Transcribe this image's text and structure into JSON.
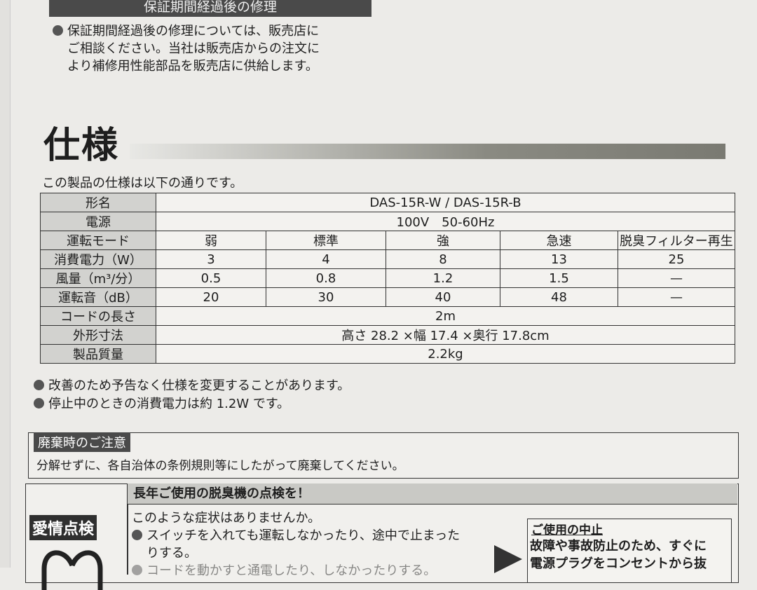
{
  "repair": {
    "heading": "保証期間経過後の修理",
    "lines": [
      "保証期間経過後の修理については、販売店に",
      "ご相談ください。当社は販売店からの注文に",
      "より補修用性能部品を販売店に供給します。"
    ]
  },
  "specs": {
    "title": "仕様",
    "intro": "この製品の仕様は以下の通りです。",
    "rows": {
      "model": {
        "label": "形名",
        "value": "DAS-15R-W / DAS-15R-B"
      },
      "power": {
        "label": "電源",
        "value": "100V　50-60Hz"
      },
      "mode": {
        "label": "運転モード",
        "values": [
          "弱",
          "標準",
          "強",
          "急速",
          "脱臭フィルター再生"
        ]
      },
      "consumption": {
        "label": "消費電力（W）",
        "values": [
          "3",
          "4",
          "8",
          "13",
          "25"
        ]
      },
      "airflow": {
        "label": "風量（m³/分）",
        "values": [
          "0.5",
          "0.8",
          "1.2",
          "1.5",
          "—"
        ]
      },
      "noise": {
        "label": "運転音（dB）",
        "values": [
          "20",
          "30",
          "40",
          "48",
          "—"
        ]
      },
      "cord": {
        "label": "コードの長さ",
        "value": "2m"
      },
      "dimensions": {
        "label": "外形寸法",
        "value": "高さ 28.2 ×幅 17.4 ×奥行 17.8cm"
      },
      "weight": {
        "label": "製品質量",
        "value": "2.2kg"
      }
    },
    "notes": [
      "改善のため予告なく仕様を変更することがあります。",
      "停止中のときの消費電力は約 1.2W です。"
    ]
  },
  "disposal": {
    "tag": "廃棄時のご注意",
    "text": "分解せずに、各自治体の条例規則等にしたがって廃棄してください。"
  },
  "care": {
    "tag": "愛情点検",
    "heading": "長年ご使用の脱臭機の点検を！",
    "question": "このような症状はありませんか。",
    "items": [
      "スイッチを入れても運転しなかったり、途中で止まった",
      "りする。",
      "コードを動かすと通電したり、しなかったりする。"
    ],
    "stop_title": "ご使用の中止",
    "stop_lines": [
      "故障や事故防止のため、すぐに",
      "電源プラグをコンセントから抜"
    ]
  }
}
